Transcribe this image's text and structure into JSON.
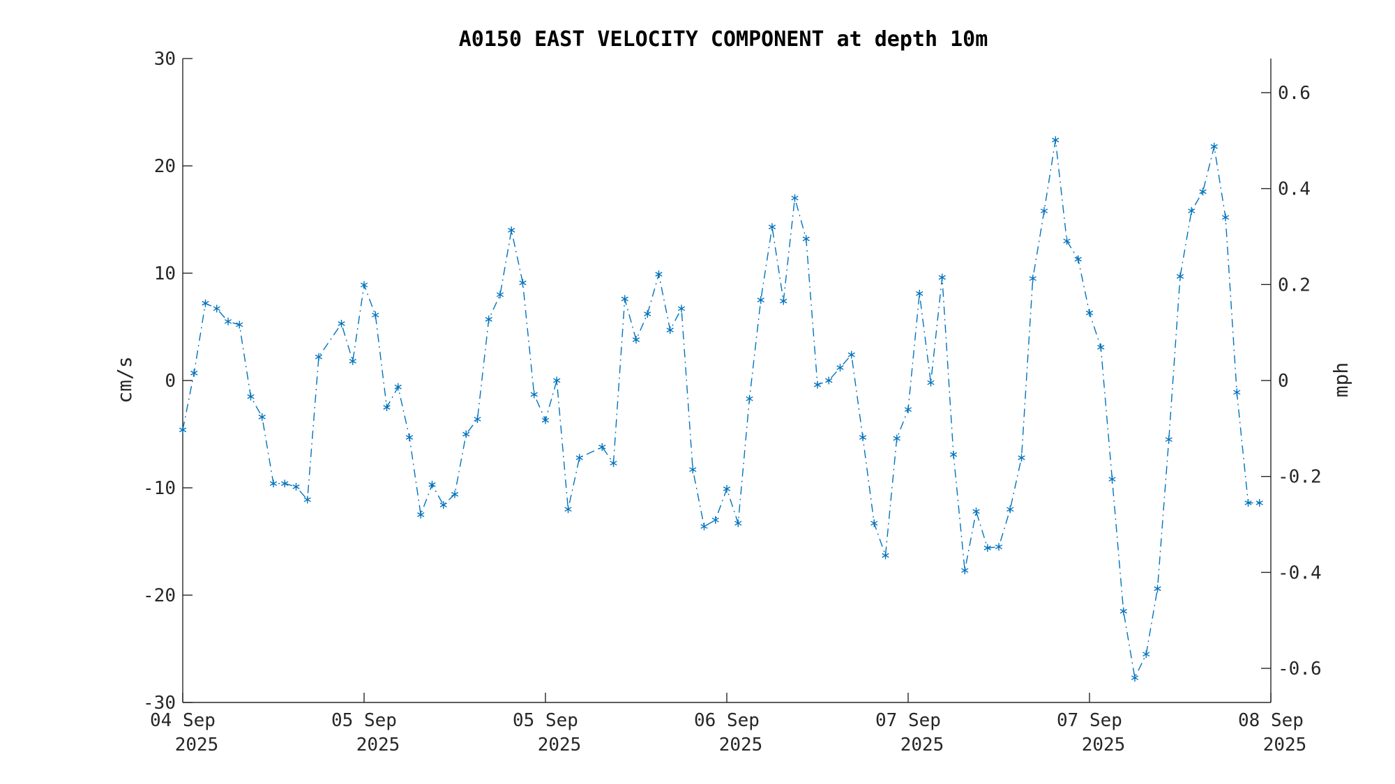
{
  "chart_data": {
    "type": "line",
    "title": "A0150 EAST VELOCITY COMPONENT at depth 10m",
    "ylabel": "cm/s",
    "ylabel_right": "mph",
    "ylim": [
      -30,
      30
    ],
    "yticks": [
      -30,
      -20,
      -10,
      0,
      10,
      20,
      30
    ],
    "yticks_right": [
      -0.6,
      -0.4,
      -0.2,
      0,
      0.2,
      0.4,
      0.6
    ],
    "yticks_right_labels": [
      "-0.6",
      "-0.4",
      "-0.2",
      "0",
      "0.2",
      "0.4",
      "0.6"
    ],
    "xlim": [
      0,
      96
    ],
    "x_tick_positions": [
      0,
      16,
      32,
      48,
      64,
      80,
      96
    ],
    "x_tick_labels": [
      {
        "line1": "04 Sep",
        "line2": "2025"
      },
      {
        "line1": "05 Sep",
        "line2": "2025"
      },
      {
        "line1": "05 Sep",
        "line2": "2025"
      },
      {
        "line1": "06 Sep",
        "line2": "2025"
      },
      {
        "line1": "07 Sep",
        "line2": "2025"
      },
      {
        "line1": "07 Sep",
        "line2": "2025"
      },
      {
        "line1": "08 Sep",
        "line2": "2025"
      }
    ],
    "grid": false,
    "line_style": "dash-dot",
    "marker": "asterisk",
    "series": [
      {
        "color": "#0072BD",
        "points": [
          [
            0,
            -4.6
          ],
          [
            1,
            0.7
          ],
          [
            2,
            7.2
          ],
          [
            3,
            6.7
          ],
          [
            4,
            5.5
          ],
          [
            5,
            5.2
          ],
          [
            6,
            -1.5
          ],
          [
            7,
            -3.4
          ],
          [
            8,
            -9.6
          ],
          [
            9,
            -9.6
          ],
          [
            10,
            -9.9
          ],
          [
            11,
            -11.1
          ],
          [
            12,
            2.2
          ],
          [
            14,
            5.3
          ],
          [
            15,
            1.8
          ],
          [
            16,
            8.9
          ],
          [
            17,
            6.1
          ],
          [
            18,
            -2.5
          ],
          [
            19,
            -0.6
          ],
          [
            20,
            -5.3
          ],
          [
            21,
            -12.5
          ],
          [
            22,
            -9.7
          ],
          [
            23,
            -11.6
          ],
          [
            24,
            -10.6
          ],
          [
            25,
            -5.0
          ],
          [
            26,
            -3.6
          ],
          [
            27,
            5.7
          ],
          [
            28,
            8.0
          ],
          [
            29,
            14.0
          ],
          [
            30,
            9.1
          ],
          [
            31,
            -1.3
          ],
          [
            32,
            -3.7
          ],
          [
            33,
            0.0
          ],
          [
            34,
            -12.0
          ],
          [
            35,
            -7.2
          ],
          [
            37,
            -6.2
          ],
          [
            38,
            -7.7
          ],
          [
            39,
            7.6
          ],
          [
            40,
            3.8
          ],
          [
            41,
            6.2
          ],
          [
            42,
            9.9
          ],
          [
            43,
            4.7
          ],
          [
            44,
            6.7
          ],
          [
            45,
            -8.3
          ],
          [
            46,
            -13.6
          ],
          [
            47,
            -13.0
          ],
          [
            48,
            -10.1
          ],
          [
            49,
            -13.3
          ],
          [
            50,
            -1.7
          ],
          [
            51,
            7.5
          ],
          [
            52,
            14.3
          ],
          [
            53,
            7.4
          ],
          [
            54,
            17.0
          ],
          [
            55,
            13.2
          ],
          [
            56,
            -0.4
          ],
          [
            57,
            0.0
          ],
          [
            58,
            1.2
          ],
          [
            59,
            2.4
          ],
          [
            60,
            -5.3
          ],
          [
            61,
            -13.3
          ],
          [
            62,
            -16.3
          ],
          [
            63,
            -5.4
          ],
          [
            64,
            -2.7
          ],
          [
            65,
            8.1
          ],
          [
            66,
            -0.2
          ],
          [
            67,
            9.6
          ],
          [
            68,
            -6.9
          ],
          [
            69,
            -17.7
          ],
          [
            70,
            -12.2
          ],
          [
            71,
            -15.6
          ],
          [
            72,
            -15.5
          ],
          [
            73,
            -12.0
          ],
          [
            74,
            -7.2
          ],
          [
            75,
            9.5
          ],
          [
            76,
            15.8
          ],
          [
            77,
            22.4
          ],
          [
            78,
            13.0
          ],
          [
            79,
            11.3
          ],
          [
            80,
            6.3
          ],
          [
            81,
            3.1
          ],
          [
            82,
            -9.2
          ],
          [
            83,
            -21.5
          ],
          [
            84,
            -27.7
          ],
          [
            85,
            -25.5
          ],
          [
            86,
            -19.4
          ],
          [
            87,
            -5.5
          ],
          [
            88,
            9.7
          ],
          [
            89,
            15.8
          ],
          [
            90,
            17.6
          ],
          [
            91,
            21.8
          ],
          [
            92,
            15.2
          ],
          [
            93,
            -1.1
          ],
          [
            94,
            -11.4
          ],
          [
            95,
            -11.4
          ]
        ]
      }
    ]
  }
}
